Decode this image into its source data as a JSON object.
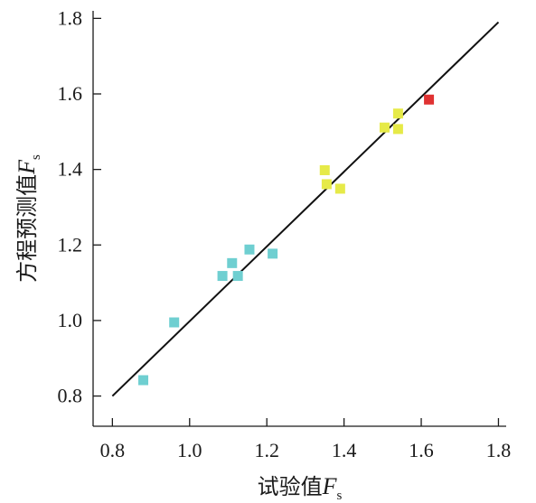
{
  "chart_data": {
    "type": "scatter",
    "title": "",
    "xlabel": {
      "text": "试验值",
      "variable": "F",
      "subscript": "s"
    },
    "ylabel": {
      "text": "方程预测值",
      "variable": "F",
      "subscript": "s"
    },
    "xlim": [
      0.75,
      1.82
    ],
    "ylim": [
      0.72,
      1.82
    ],
    "x_ticks": [
      "0.8",
      "1.0",
      "1.2",
      "1.4",
      "1.6",
      "1.8"
    ],
    "y_ticks": [
      "0.8",
      "1.0",
      "1.2",
      "1.4",
      "1.6",
      "1.8"
    ],
    "grid": false,
    "legend": "none",
    "series": [
      {
        "color": "#6fcfd1",
        "points": [
          {
            "x": 0.88,
            "y": 0.842
          },
          {
            "x": 0.96,
            "y": 0.995
          },
          {
            "x": 1.085,
            "y": 1.118
          },
          {
            "x": 1.11,
            "y": 1.152
          },
          {
            "x": 1.125,
            "y": 1.118
          },
          {
            "x": 1.155,
            "y": 1.188
          },
          {
            "x": 1.215,
            "y": 1.177
          }
        ]
      },
      {
        "color": "#e6ea48",
        "points": [
          {
            "x": 1.35,
            "y": 1.398
          },
          {
            "x": 1.355,
            "y": 1.361
          },
          {
            "x": 1.39,
            "y": 1.349
          },
          {
            "x": 1.505,
            "y": 1.511
          },
          {
            "x": 1.54,
            "y": 1.548
          },
          {
            "x": 1.54,
            "y": 1.507
          }
        ]
      },
      {
        "color": "#e03232",
        "points": [
          {
            "x": 1.62,
            "y": 1.585
          }
        ]
      }
    ],
    "reference_line": {
      "color": "#111111",
      "points": [
        {
          "x": 0.8,
          "y": 0.8
        },
        {
          "x": 1.8,
          "y": 1.79
        }
      ]
    }
  }
}
